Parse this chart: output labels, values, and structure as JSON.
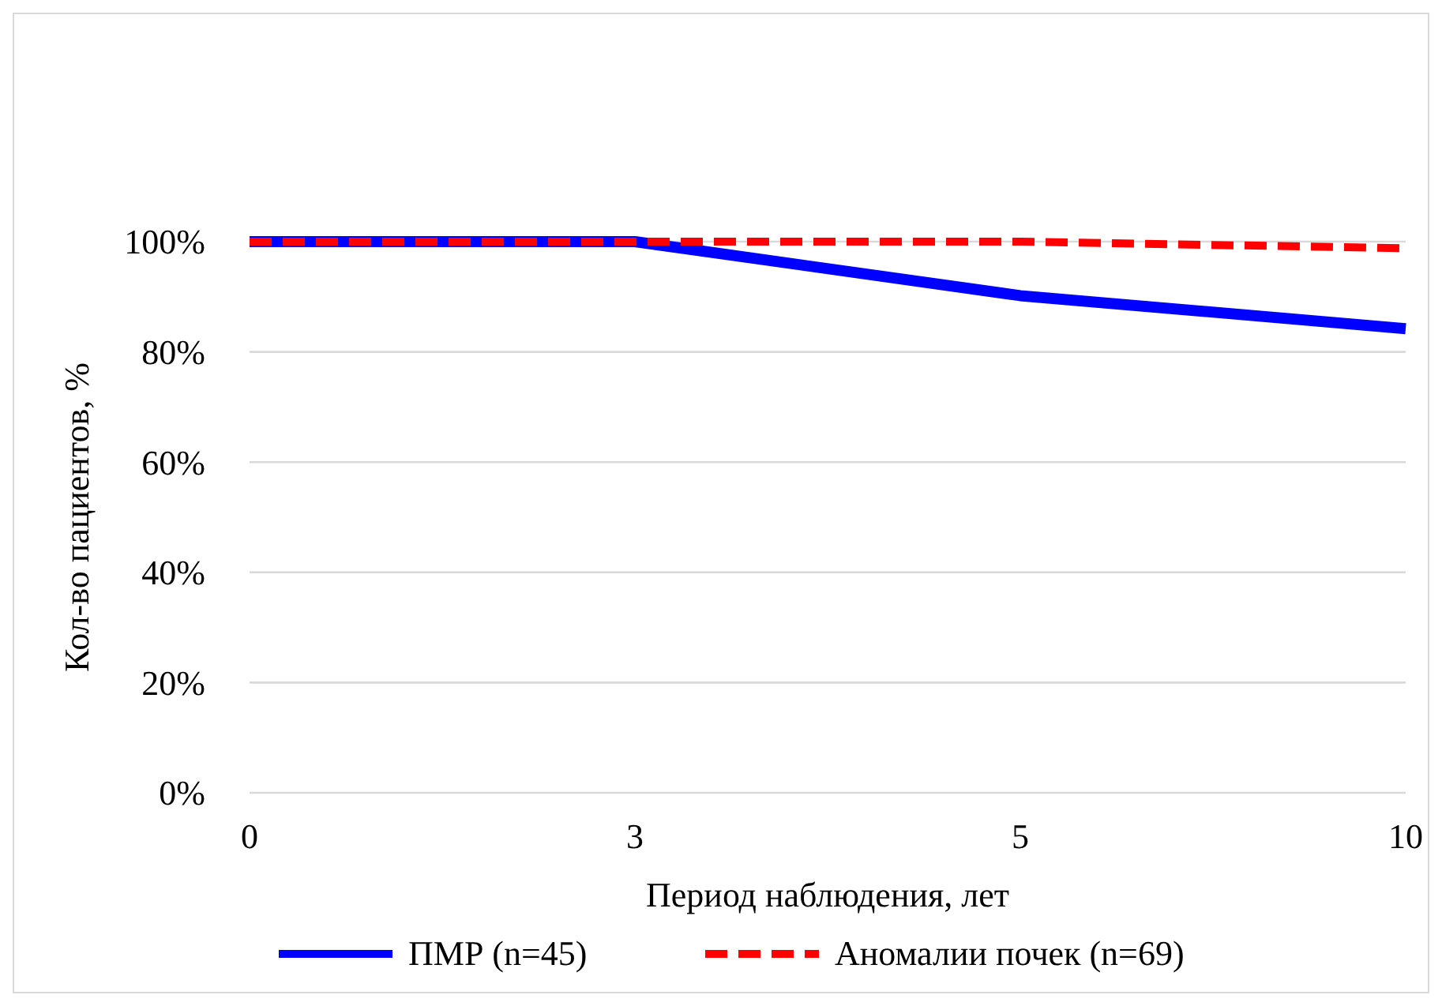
{
  "chart_data": {
    "type": "line",
    "xlabel": "Период наблюдения, лет",
    "ylabel": "Кол-во пациентов, %",
    "categories": [
      "0",
      "3",
      "5",
      "10"
    ],
    "series": [
      {
        "name": "ПМР (n=45)",
        "color": "#0000ff",
        "values": [
          100,
          100,
          90.2,
          84.2
        ],
        "line_style": "solid"
      },
      {
        "name": "Аномалии почек (n=69)",
        "color": "#ff0000",
        "values": [
          100,
          100,
          100,
          98.8
        ],
        "line_style": "dashed"
      }
    ],
    "ylim": [
      0,
      100
    ],
    "yticks": [
      {
        "value": 0,
        "label": "0%"
      },
      {
        "value": 20,
        "label": "20%"
      },
      {
        "value": 40,
        "label": "40%"
      },
      {
        "value": 60,
        "label": "60%"
      },
      {
        "value": 80,
        "label": "80%"
      },
      {
        "value": 100,
        "label": "100%"
      }
    ],
    "grid": "y",
    "legend": "bottom",
    "marker": "none"
  }
}
